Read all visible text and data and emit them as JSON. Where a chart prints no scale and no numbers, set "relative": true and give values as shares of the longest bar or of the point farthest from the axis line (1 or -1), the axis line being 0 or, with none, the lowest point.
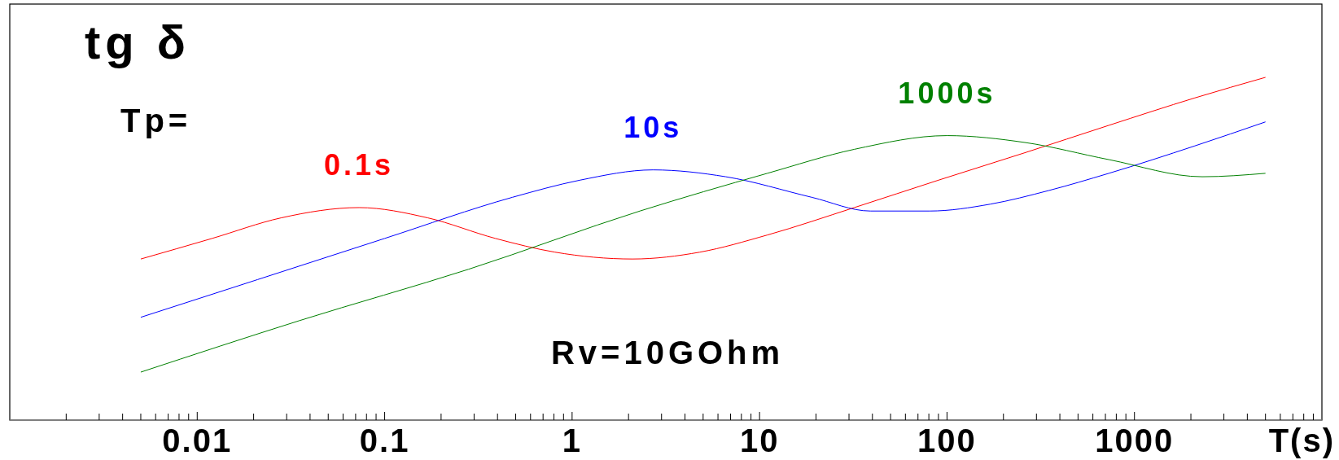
{
  "chart_data": {
    "type": "line",
    "title": "tg δ",
    "xlabel": "T(s)",
    "relative": true,
    "log": "x",
    "xlim": [
      0.001,
      10000
    ],
    "xticks": [
      {
        "value": 0.002,
        "label": null
      },
      {
        "value": 0.003,
        "label": null
      },
      {
        "value": 0.004,
        "label": null
      },
      {
        "value": 0.005,
        "label": null
      },
      {
        "value": 0.006,
        "label": null
      },
      {
        "value": 0.007,
        "label": null
      },
      {
        "value": 0.008,
        "label": null
      },
      {
        "value": 0.009,
        "label": null
      },
      0.01,
      {
        "value": 0.02,
        "label": null
      },
      {
        "value": 0.03,
        "label": null
      },
      {
        "value": 0.04,
        "label": null
      },
      {
        "value": 0.05,
        "label": null
      },
      {
        "value": 0.06,
        "label": null
      },
      {
        "value": 0.07,
        "label": null
      },
      {
        "value": 0.08,
        "label": null
      },
      {
        "value": 0.09,
        "label": null
      },
      0.1,
      {
        "value": 0.2,
        "label": null
      },
      {
        "value": 0.3,
        "label": null
      },
      {
        "value": 0.4,
        "label": null
      },
      {
        "value": 0.5,
        "label": null
      },
      {
        "value": 0.6,
        "label": null
      },
      {
        "value": 0.7,
        "label": null
      },
      {
        "value": 0.8,
        "label": null
      },
      {
        "value": 0.9,
        "label": null
      },
      1,
      {
        "value": 2,
        "label": null
      },
      {
        "value": 3,
        "label": null
      },
      {
        "value": 4,
        "label": null
      },
      {
        "value": 5,
        "label": null
      },
      {
        "value": 6,
        "label": null
      },
      {
        "value": 7,
        "label": null
      },
      {
        "value": 8,
        "label": null
      },
      {
        "value": 9,
        "label": null
      },
      10,
      {
        "value": 20,
        "label": null
      },
      {
        "value": 30,
        "label": null
      },
      {
        "value": 40,
        "label": null
      },
      {
        "value": 50,
        "label": null
      },
      {
        "value": 60,
        "label": null
      },
      {
        "value": 70,
        "label": null
      },
      {
        "value": 80,
        "label": null
      },
      {
        "value": 90,
        "label": null
      },
      100,
      {
        "value": 200,
        "label": null
      },
      {
        "value": 300,
        "label": null
      },
      {
        "value": 400,
        "label": null
      },
      {
        "value": 500,
        "label": null
      },
      {
        "value": 600,
        "label": null
      },
      {
        "value": 700,
        "label": null
      },
      {
        "value": 800,
        "label": null
      },
      {
        "value": 900,
        "label": null
      },
      1000,
      {
        "value": 2000,
        "label": null
      },
      {
        "value": 3000,
        "label": null
      },
      {
        "value": 4000,
        "label": null
      },
      {
        "value": 5000,
        "label": null
      },
      {
        "value": 6000,
        "label": null
      },
      {
        "value": 7000,
        "label": null
      },
      {
        "value": 8000,
        "label": null
      },
      {
        "value": 9000,
        "label": null
      }
    ],
    "annotations": [
      "Tp=",
      "Rv=10GOhm"
    ],
    "series": [
      {
        "name": "0.1s",
        "color": "#ff0000",
        "x": [
          0.005,
          0.012,
          0.028,
          0.073,
          0.17,
          0.39,
          0.81,
          2.1,
          4.8,
          11,
          32,
          90,
          260,
          730,
          2100,
          5000
        ],
        "values": [
          0.47,
          0.53,
          0.59,
          0.62,
          0.59,
          0.53,
          0.49,
          0.47,
          0.49,
          0.54,
          0.62,
          0.7,
          0.78,
          0.86,
          0.94,
          1
        ]
      },
      {
        "name": "10s",
        "color": "#0000ff",
        "x": [
          0.005,
          0.021,
          0.1,
          0.48,
          1.1,
          2.7,
          6.6,
          19,
          39,
          81,
          170,
          350,
          730,
          2100,
          5000
        ],
        "values": [
          0.3,
          0.41,
          0.53,
          0.65,
          0.7,
          0.73,
          0.71,
          0.65,
          0.61,
          0.61,
          0.63,
          0.67,
          0.72,
          0.8,
          0.87
        ]
      },
      {
        "name": "1000s",
        "color": "#008000",
        "x": [
          0.005,
          0.035,
          0.28,
          2.3,
          11,
          32,
          100,
          260,
          730,
          2300,
          5000
        ],
        "values": [
          0.14,
          0.29,
          0.44,
          0.61,
          0.72,
          0.79,
          0.83,
          0.81,
          0.76,
          0.71,
          0.72
        ]
      }
    ]
  }
}
